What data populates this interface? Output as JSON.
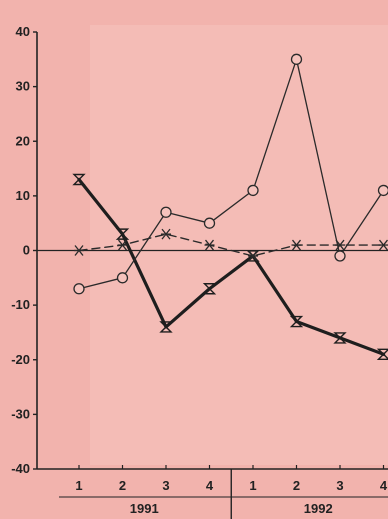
{
  "chart_data": {
    "type": "line",
    "title": "",
    "xlabel": "",
    "ylabel": "",
    "ylim": [
      -40,
      40
    ],
    "yticks": [
      40,
      30,
      20,
      10,
      0,
      -10,
      -20,
      -30,
      -40
    ],
    "ytick_labels": [
      "40",
      "30",
      "20",
      "10",
      "0",
      "-10",
      "-20",
      "-30",
      "-40"
    ],
    "categories": [
      "1",
      "2",
      "3",
      "4",
      "1",
      "2",
      "3",
      "4"
    ],
    "groups": [
      {
        "label": "1991",
        "start": 0,
        "end": 3
      },
      {
        "label": "1992",
        "start": 4,
        "end": 7
      }
    ],
    "grid": false,
    "zero_line": true,
    "series": [
      {
        "marker": "hourglass",
        "style": "thick-solid",
        "color": "#1e1e1e",
        "values": [
          13,
          3,
          -14,
          -7,
          -1,
          -13,
          -16,
          -19
        ]
      },
      {
        "marker": "circle",
        "style": "thin-solid",
        "color": "#2a2a2a",
        "values": [
          -7,
          -5,
          7,
          5,
          11,
          35,
          -1,
          11
        ]
      },
      {
        "marker": "star",
        "style": "dashed",
        "color": "#2a2a2a",
        "values": [
          0,
          1,
          3,
          1,
          -1,
          1,
          1,
          1
        ]
      }
    ]
  }
}
